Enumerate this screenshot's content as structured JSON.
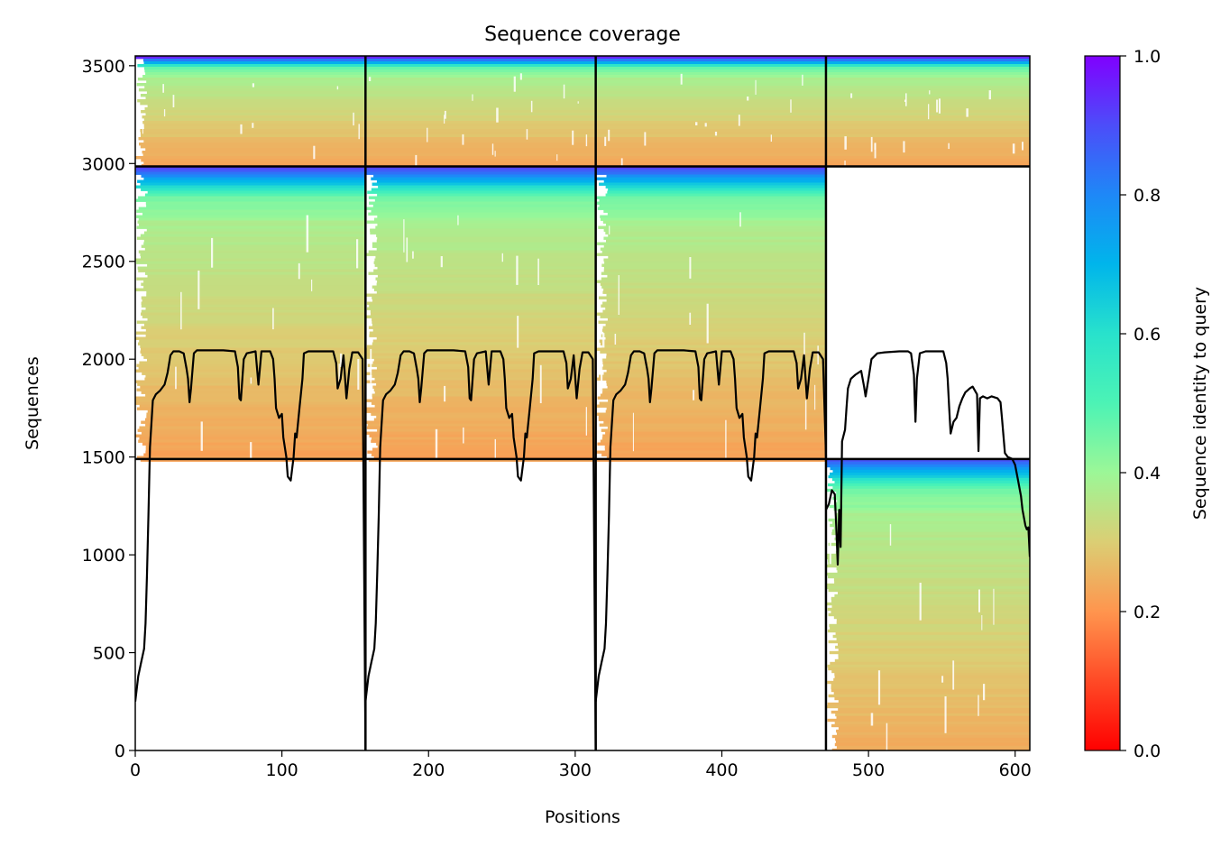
{
  "chart_data": {
    "type": "heatmap",
    "title": "Sequence coverage",
    "xlabel": "Positions",
    "ylabel": "Sequences",
    "colorbar_label": "Sequence identity to query",
    "xlim": [
      0,
      610
    ],
    "ylim": [
      0,
      3550
    ],
    "x_ticks": [
      "0",
      "100",
      "200",
      "300",
      "400",
      "500",
      "600"
    ],
    "y_ticks": [
      "0",
      "500",
      "1000",
      "1500",
      "2000",
      "2500",
      "3000",
      "3500"
    ],
    "colorbar_ticks": [
      "0.0",
      "0.2",
      "0.4",
      "0.6",
      "0.8",
      "1.0"
    ],
    "colorbar_range": [
      0,
      1
    ],
    "grid": false,
    "colormap": "rainbow_r",
    "chain_boundaries_x": [
      157,
      314,
      471
    ],
    "msa_boundaries_y": [
      1490,
      2985
    ],
    "blocks": [
      {
        "name": "block-paired",
        "x": [
          0,
          610
        ],
        "y": [
          2985,
          3550
        ],
        "identity_range": [
          0.22,
          0.95
        ]
      },
      {
        "name": "block-chain-1",
        "x": [
          0,
          157
        ],
        "y": [
          1490,
          2985
        ],
        "identity_range": [
          0.22,
          0.92
        ]
      },
      {
        "name": "block-chain-2",
        "x": [
          157,
          314
        ],
        "y": [
          1490,
          2985
        ],
        "identity_range": [
          0.22,
          0.92
        ]
      },
      {
        "name": "block-chain-3",
        "x": [
          314,
          471
        ],
        "y": [
          1490,
          2985
        ],
        "identity_range": [
          0.22,
          0.92
        ]
      },
      {
        "name": "block-chain-4",
        "x": [
          471,
          610
        ],
        "y": [
          0,
          1490
        ],
        "identity_range": [
          0.24,
          0.88
        ]
      }
    ],
    "coverage_segments": [
      {
        "name": "coverage-chain-1",
        "x0": 0,
        "x1": 157,
        "points": [
          [
            0,
            250
          ],
          [
            2,
            380
          ],
          [
            4,
            450
          ],
          [
            6,
            520
          ],
          [
            7,
            650
          ],
          [
            8,
            900
          ],
          [
            9,
            1200
          ],
          [
            10,
            1550
          ],
          [
            12,
            1790
          ],
          [
            14,
            1820
          ],
          [
            17,
            1840
          ],
          [
            20,
            1870
          ],
          [
            22,
            1930
          ],
          [
            24,
            2020
          ],
          [
            26,
            2040
          ],
          [
            30,
            2040
          ],
          [
            33,
            2030
          ],
          [
            35,
            1950
          ],
          [
            36,
            1900
          ],
          [
            37,
            1780
          ],
          [
            38,
            1850
          ],
          [
            40,
            2030
          ],
          [
            42,
            2045
          ],
          [
            50,
            2045
          ],
          [
            60,
            2045
          ],
          [
            68,
            2040
          ],
          [
            70,
            1960
          ],
          [
            71,
            1800
          ],
          [
            72,
            1790
          ],
          [
            74,
            2000
          ],
          [
            76,
            2030
          ],
          [
            82,
            2040
          ],
          [
            84,
            1870
          ],
          [
            86,
            2040
          ],
          [
            92,
            2040
          ],
          [
            94,
            2000
          ],
          [
            95,
            1900
          ],
          [
            96,
            1750
          ],
          [
            98,
            1700
          ],
          [
            100,
            1720
          ],
          [
            101,
            1600
          ],
          [
            103,
            1500
          ],
          [
            104,
            1400
          ],
          [
            106,
            1380
          ],
          [
            108,
            1500
          ],
          [
            109,
            1620
          ],
          [
            110,
            1600
          ],
          [
            112,
            1750
          ],
          [
            114,
            1900
          ],
          [
            115,
            2030
          ],
          [
            118,
            2040
          ],
          [
            135,
            2040
          ],
          [
            137,
            1980
          ],
          [
            138,
            1850
          ],
          [
            140,
            1900
          ],
          [
            142,
            2020
          ],
          [
            144,
            1800
          ],
          [
            146,
            1950
          ],
          [
            148,
            2035
          ],
          [
            152,
            2035
          ],
          [
            155,
            2000
          ],
          [
            157,
            0
          ]
        ]
      },
      {
        "name": "coverage-chain-2",
        "x0": 157,
        "x1": 314,
        "points": [
          [
            0,
            250
          ],
          [
            2,
            380
          ],
          [
            4,
            450
          ],
          [
            6,
            520
          ],
          [
            7,
            650
          ],
          [
            8,
            900
          ],
          [
            9,
            1200
          ],
          [
            10,
            1550
          ],
          [
            12,
            1790
          ],
          [
            14,
            1820
          ],
          [
            17,
            1840
          ],
          [
            20,
            1870
          ],
          [
            22,
            1930
          ],
          [
            24,
            2020
          ],
          [
            26,
            2040
          ],
          [
            30,
            2040
          ],
          [
            33,
            2030
          ],
          [
            35,
            1950
          ],
          [
            36,
            1900
          ],
          [
            37,
            1780
          ],
          [
            38,
            1850
          ],
          [
            40,
            2030
          ],
          [
            42,
            2045
          ],
          [
            50,
            2045
          ],
          [
            60,
            2045
          ],
          [
            68,
            2040
          ],
          [
            70,
            1960
          ],
          [
            71,
            1800
          ],
          [
            72,
            1790
          ],
          [
            74,
            2000
          ],
          [
            76,
            2030
          ],
          [
            82,
            2040
          ],
          [
            84,
            1870
          ],
          [
            86,
            2040
          ],
          [
            92,
            2040
          ],
          [
            94,
            2000
          ],
          [
            95,
            1900
          ],
          [
            96,
            1750
          ],
          [
            98,
            1700
          ],
          [
            100,
            1720
          ],
          [
            101,
            1600
          ],
          [
            103,
            1500
          ],
          [
            104,
            1400
          ],
          [
            106,
            1380
          ],
          [
            108,
            1500
          ],
          [
            109,
            1620
          ],
          [
            110,
            1600
          ],
          [
            112,
            1750
          ],
          [
            114,
            1900
          ],
          [
            115,
            2030
          ],
          [
            118,
            2040
          ],
          [
            135,
            2040
          ],
          [
            137,
            1980
          ],
          [
            138,
            1850
          ],
          [
            140,
            1900
          ],
          [
            142,
            2020
          ],
          [
            144,
            1800
          ],
          [
            146,
            1950
          ],
          [
            148,
            2035
          ],
          [
            152,
            2035
          ],
          [
            155,
            2000
          ],
          [
            157,
            0
          ]
        ]
      },
      {
        "name": "coverage-chain-3",
        "x0": 314,
        "x1": 471,
        "points": [
          [
            0,
            250
          ],
          [
            2,
            380
          ],
          [
            4,
            450
          ],
          [
            6,
            520
          ],
          [
            7,
            650
          ],
          [
            8,
            900
          ],
          [
            9,
            1200
          ],
          [
            10,
            1550
          ],
          [
            12,
            1790
          ],
          [
            14,
            1820
          ],
          [
            17,
            1840
          ],
          [
            20,
            1870
          ],
          [
            22,
            1930
          ],
          [
            24,
            2020
          ],
          [
            26,
            2040
          ],
          [
            30,
            2040
          ],
          [
            33,
            2030
          ],
          [
            35,
            1950
          ],
          [
            36,
            1900
          ],
          [
            37,
            1780
          ],
          [
            38,
            1850
          ],
          [
            40,
            2030
          ],
          [
            42,
            2045
          ],
          [
            50,
            2045
          ],
          [
            60,
            2045
          ],
          [
            68,
            2040
          ],
          [
            70,
            1960
          ],
          [
            71,
            1800
          ],
          [
            72,
            1790
          ],
          [
            74,
            2000
          ],
          [
            76,
            2030
          ],
          [
            82,
            2040
          ],
          [
            84,
            1870
          ],
          [
            86,
            2040
          ],
          [
            92,
            2040
          ],
          [
            94,
            2000
          ],
          [
            95,
            1900
          ],
          [
            96,
            1750
          ],
          [
            98,
            1700
          ],
          [
            100,
            1720
          ],
          [
            101,
            1600
          ],
          [
            103,
            1500
          ],
          [
            104,
            1400
          ],
          [
            106,
            1380
          ],
          [
            108,
            1500
          ],
          [
            109,
            1620
          ],
          [
            110,
            1600
          ],
          [
            112,
            1750
          ],
          [
            114,
            1900
          ],
          [
            115,
            2030
          ],
          [
            118,
            2040
          ],
          [
            135,
            2040
          ],
          [
            137,
            1980
          ],
          [
            138,
            1850
          ],
          [
            140,
            1900
          ],
          [
            142,
            2020
          ],
          [
            144,
            1800
          ],
          [
            146,
            1950
          ],
          [
            148,
            2035
          ],
          [
            152,
            2035
          ],
          [
            155,
            2000
          ],
          [
            157,
            1500
          ]
        ]
      },
      {
        "name": "coverage-chain-4",
        "x0": 471,
        "x1": 610,
        "points": [
          [
            0,
            1230
          ],
          [
            2,
            1260
          ],
          [
            4,
            1330
          ],
          [
            6,
            1310
          ],
          [
            7,
            1150
          ],
          [
            8,
            950
          ],
          [
            9,
            1230
          ],
          [
            10,
            1040
          ],
          [
            11,
            1580
          ],
          [
            13,
            1640
          ],
          [
            14,
            1750
          ],
          [
            15,
            1850
          ],
          [
            17,
            1900
          ],
          [
            20,
            1920
          ],
          [
            24,
            1940
          ],
          [
            26,
            1860
          ],
          [
            27,
            1810
          ],
          [
            29,
            1900
          ],
          [
            31,
            2000
          ],
          [
            35,
            2030
          ],
          [
            40,
            2035
          ],
          [
            50,
            2040
          ],
          [
            56,
            2040
          ],
          [
            58,
            2030
          ],
          [
            60,
            1920
          ],
          [
            61,
            1680
          ],
          [
            62,
            1900
          ],
          [
            64,
            2030
          ],
          [
            68,
            2040
          ],
          [
            80,
            2040
          ],
          [
            82,
            1980
          ],
          [
            83,
            1900
          ],
          [
            84,
            1750
          ],
          [
            85,
            1620
          ],
          [
            87,
            1680
          ],
          [
            89,
            1700
          ],
          [
            91,
            1760
          ],
          [
            93,
            1800
          ],
          [
            95,
            1830
          ],
          [
            98,
            1850
          ],
          [
            100,
            1860
          ],
          [
            103,
            1820
          ],
          [
            104,
            1530
          ],
          [
            105,
            1800
          ],
          [
            107,
            1810
          ],
          [
            110,
            1800
          ],
          [
            113,
            1810
          ],
          [
            117,
            1800
          ],
          [
            119,
            1780
          ],
          [
            120,
            1700
          ],
          [
            122,
            1520
          ],
          [
            124,
            1500
          ],
          [
            127,
            1490
          ],
          [
            129,
            1460
          ],
          [
            131,
            1380
          ],
          [
            133,
            1300
          ],
          [
            134,
            1230
          ],
          [
            136,
            1150
          ],
          [
            137,
            1130
          ],
          [
            138,
            1140
          ],
          [
            139,
            990
          ]
        ]
      }
    ]
  }
}
